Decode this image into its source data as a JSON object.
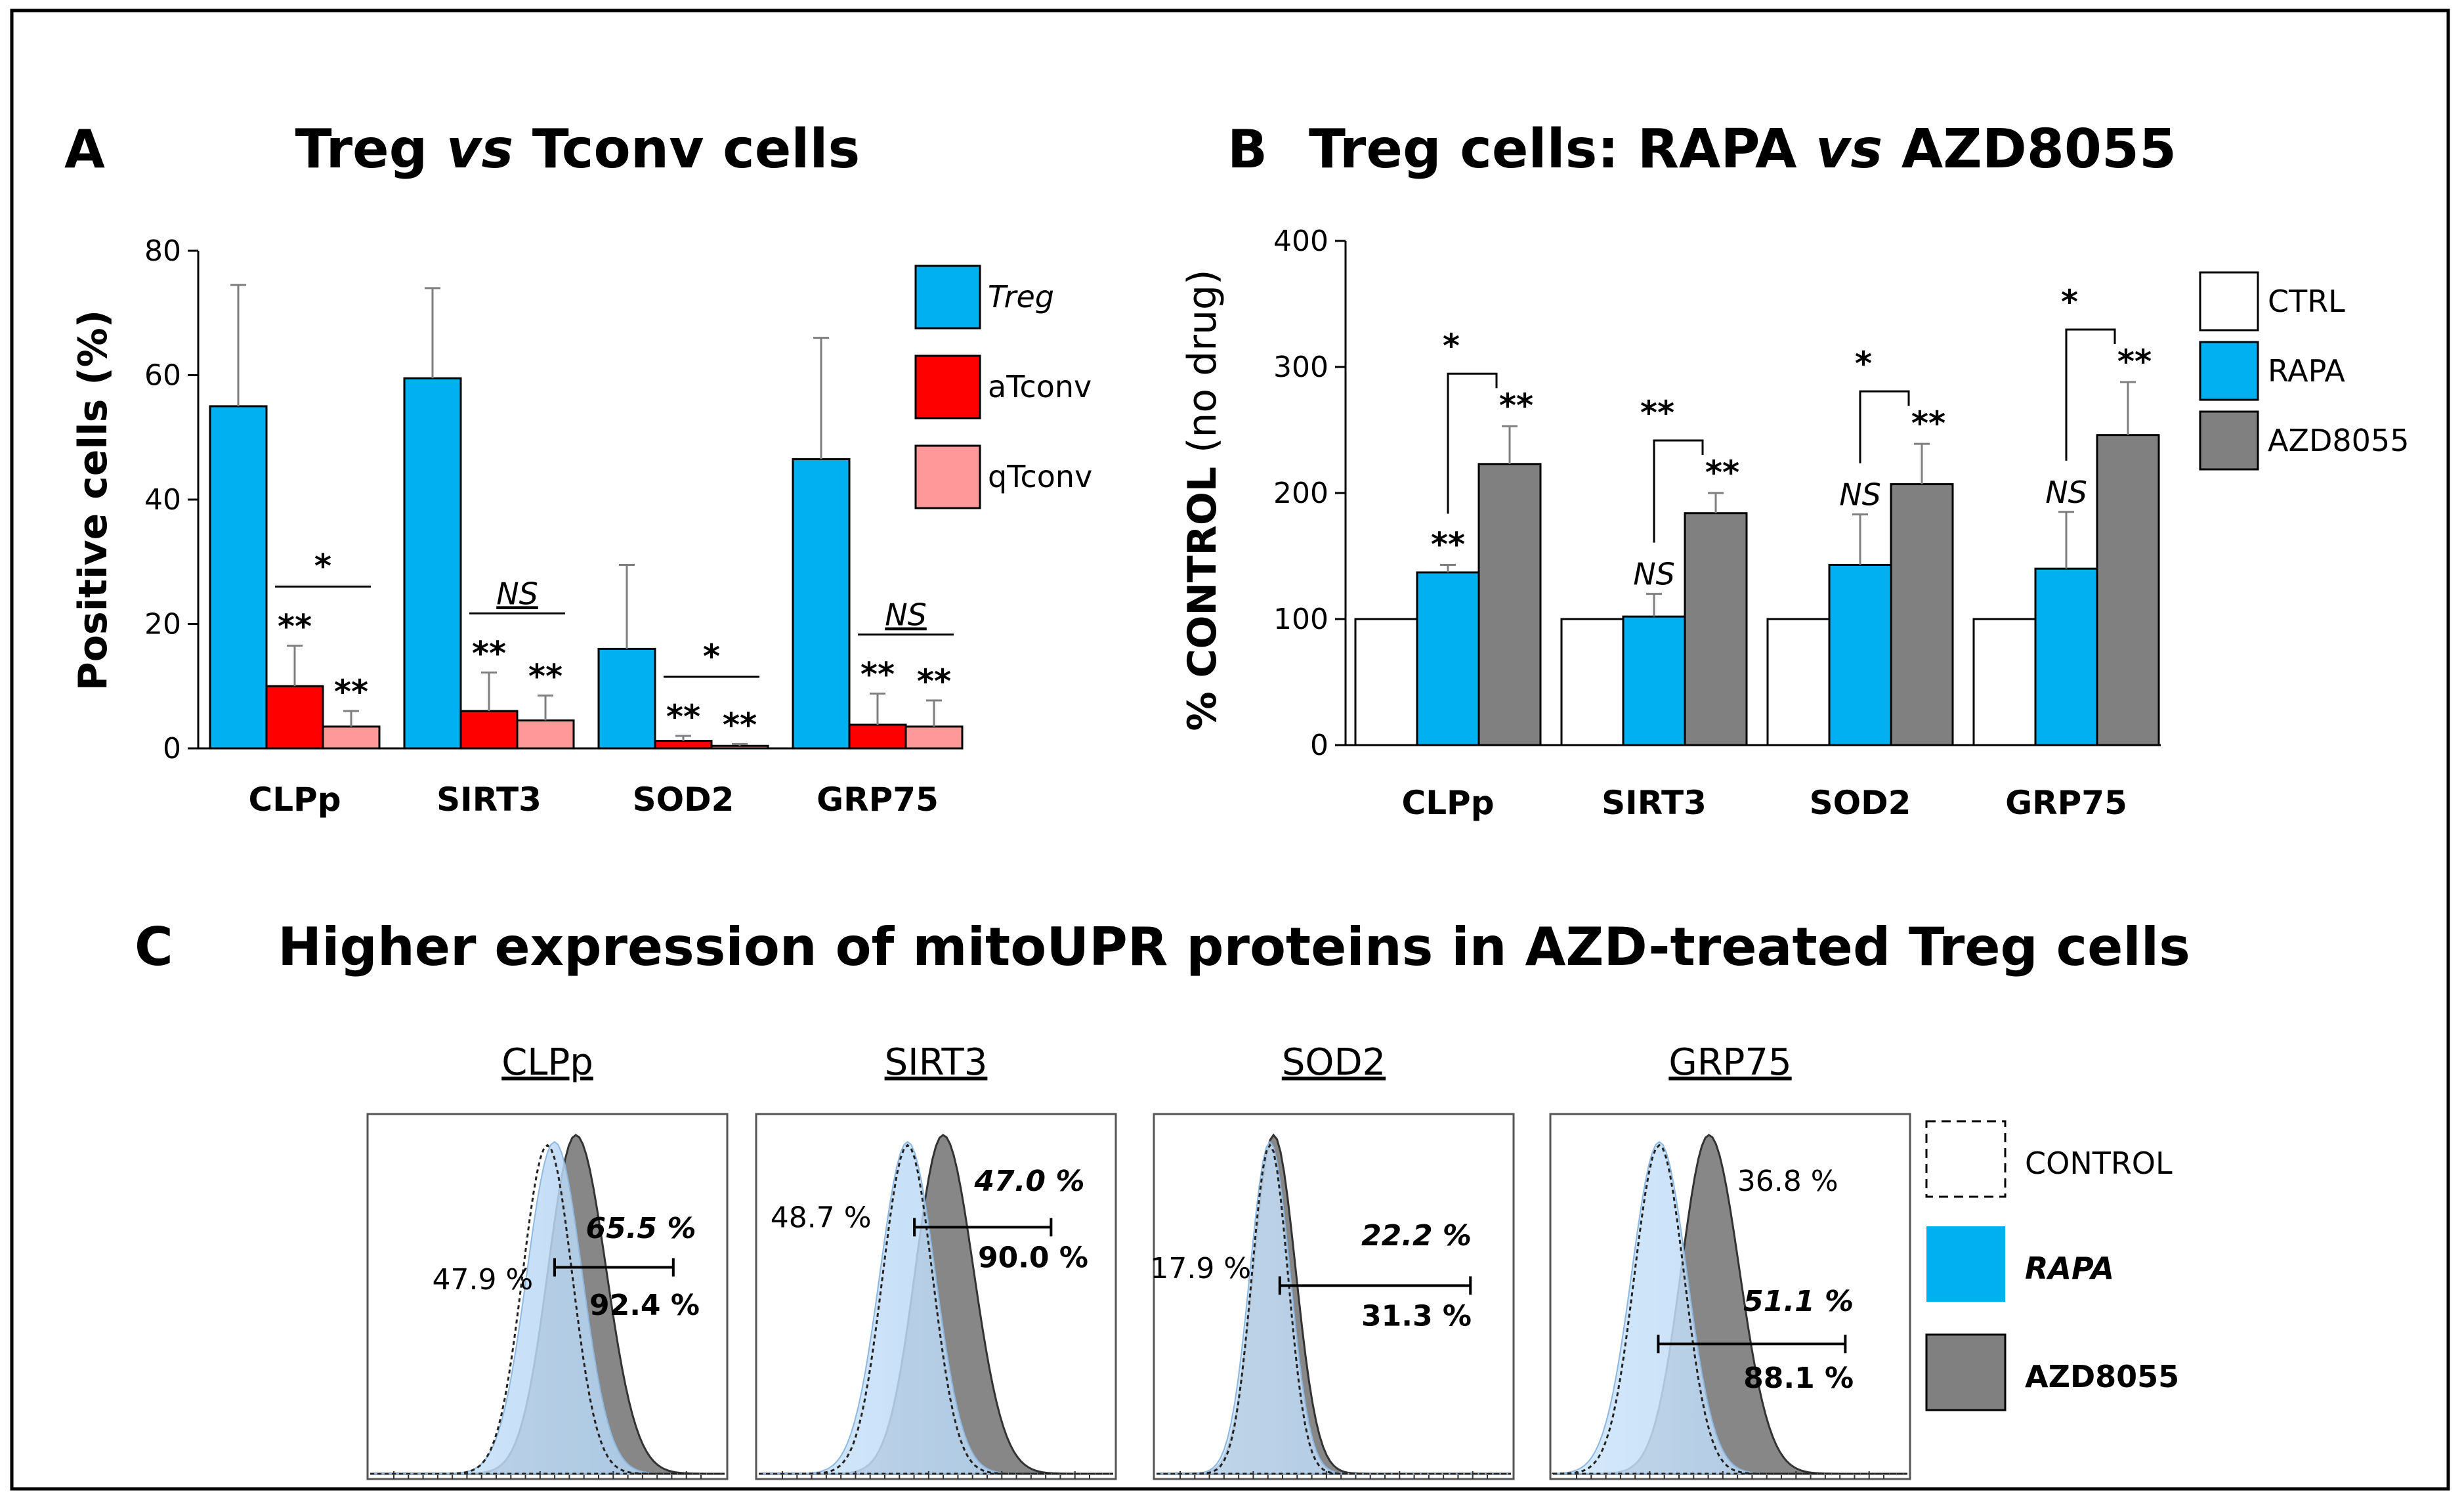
{
  "chart_data": [
    {
      "panel": "A",
      "type": "bar",
      "title_parts": [
        "Treg ",
        "vs",
        " Tconv cells"
      ],
      "ylabel": "Positive cells (%)",
      "xlabel": "",
      "ylim": [
        0,
        80
      ],
      "yticks": [
        "0",
        "20",
        "40",
        "60",
        "80"
      ],
      "categories": [
        "CLPp",
        "SIRT3",
        "SOD2",
        "GRP75"
      ],
      "series": [
        {
          "name": "Treg",
          "color": "#00b0f0",
          "values": [
            55,
            59.5,
            16,
            46.5
          ],
          "err": [
            19.5,
            14.5,
            13.5,
            19.5
          ]
        },
        {
          "name": "aTconv",
          "color": "#ff0000",
          "values": [
            10,
            6,
            1.2,
            3.8
          ],
          "err": [
            6.5,
            6.2,
            0.8,
            5
          ]
        },
        {
          "name": "qTconv",
          "color": "#ff9999",
          "values": [
            3.5,
            4.5,
            0.4,
            3.5
          ],
          "err": [
            2.5,
            4,
            0.3,
            4.2
          ]
        }
      ],
      "significance": {
        "above_bars": [
          "**",
          "**",
          "**",
          "**",
          "**",
          "**",
          "**",
          "**"
        ],
        "brackets": [
          "*",
          "NS",
          "*",
          "NS"
        ]
      }
    },
    {
      "panel": "B",
      "type": "bar",
      "title_parts": [
        "Treg cells: RAPA ",
        "vs",
        " AZD8055"
      ],
      "ylabel_parts": [
        "% CONTROL ",
        "(no drug)"
      ],
      "xlabel": "",
      "ylim": [
        0,
        400
      ],
      "yticks": [
        "0",
        "100",
        "200",
        "300",
        "400"
      ],
      "categories": [
        "CLPp",
        "SIRT3",
        "SOD2",
        "GRP75"
      ],
      "series": [
        {
          "name": "CTRL",
          "color": "#ffffff",
          "values": [
            100,
            100,
            100,
            100
          ],
          "err": [
            0,
            0,
            0,
            0
          ]
        },
        {
          "name": "RAPA",
          "color": "#00b0f0",
          "values": [
            137,
            102,
            143,
            140
          ],
          "err": [
            6,
            18,
            40,
            45
          ]
        },
        {
          "name": "AZD8055",
          "color": "#808080",
          "values": [
            223,
            184,
            207,
            246
          ],
          "err": [
            30,
            16,
            32,
            42
          ]
        }
      ],
      "significance": {
        "rapa": [
          "**",
          "NS",
          "NS",
          "NS"
        ],
        "azd": [
          "**",
          "**",
          "**",
          "**"
        ],
        "brackets": [
          "*",
          "**",
          "*",
          "*"
        ]
      }
    }
  ],
  "panel_c": {
    "label": "C",
    "title": "Higher expression of mitoUPR proteins in AZD-treated Treg cells",
    "histograms": [
      {
        "name": "CLPp",
        "control_pct": "47.9 %",
        "rapa_pct": "65.5 %",
        "azd_pct": "92.4 %"
      },
      {
        "name": "SIRT3",
        "control_pct": "48.7 %",
        "rapa_pct": "47.0 %",
        "azd_pct": "90.0 %"
      },
      {
        "name": "SOD2",
        "control_pct": "17.9 %",
        "rapa_pct": "22.2 %",
        "azd_pct": "31.3 %"
      },
      {
        "name": "GRP75",
        "control_pct": "36.8 %",
        "rapa_pct": "51.1 %",
        "azd_pct": "88.1 %"
      }
    ],
    "legend": [
      {
        "label": "CONTROL",
        "style": "dashed"
      },
      {
        "label": "RAPA",
        "style": "blue"
      },
      {
        "label": "AZD8055",
        "style": "gray"
      }
    ]
  }
}
